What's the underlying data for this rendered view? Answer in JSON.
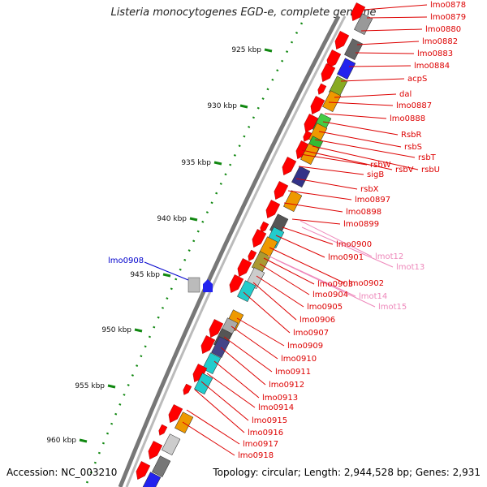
{
  "title": "Listeria monocytogenes EGD-e, complete genome",
  "accession": "Accession: NC_003210",
  "topology": "Topology: circular; Length: 2,944,528 bp; Genes: 2,931",
  "colors": {
    "cds_forward": "#ff0000",
    "label_red": "#dd0000",
    "label_pink": "#ee88bb",
    "label_blue": "#0000cc",
    "ticks": "#118811",
    "backbone": "#888888"
  },
  "kbp_labels": [
    "925 kbp",
    "930 kbp",
    "935 kbp",
    "940 kbp",
    "945 kbp",
    "950 kbp",
    "955 kbp",
    "960 kbp"
  ],
  "gene_labels_right": [
    "lmo0878",
    "lmo0879",
    "lmo0880",
    "lmo0882",
    "lmo0883",
    "lmo0884",
    "acpS",
    "dal",
    "lmo0887",
    "lmo0888",
    "RsbR",
    "rsbS",
    "rsbT",
    "rsbU",
    "rsbV",
    "rsbW",
    "sigB",
    "rsbX",
    "lmo0897",
    "lmo0898",
    "lmo0899",
    "lmo0900",
    "lmo0901",
    "lmo0902",
    "lmo0903",
    "lmo0904",
    "lmo0905",
    "lmo0906",
    "lmo0907",
    "lmo0909",
    "lmo0910",
    "lmo0911",
    "lmo0912",
    "lmo0913",
    "lmo0914",
    "lmo0915",
    "lmo0916",
    "lmo0917",
    "lmo0918"
  ],
  "gene_labels_pink": [
    "lmot12",
    "lmot13",
    "lmot14",
    "lmot15"
  ],
  "gene_labels_left": [
    "lmo0908"
  ]
}
